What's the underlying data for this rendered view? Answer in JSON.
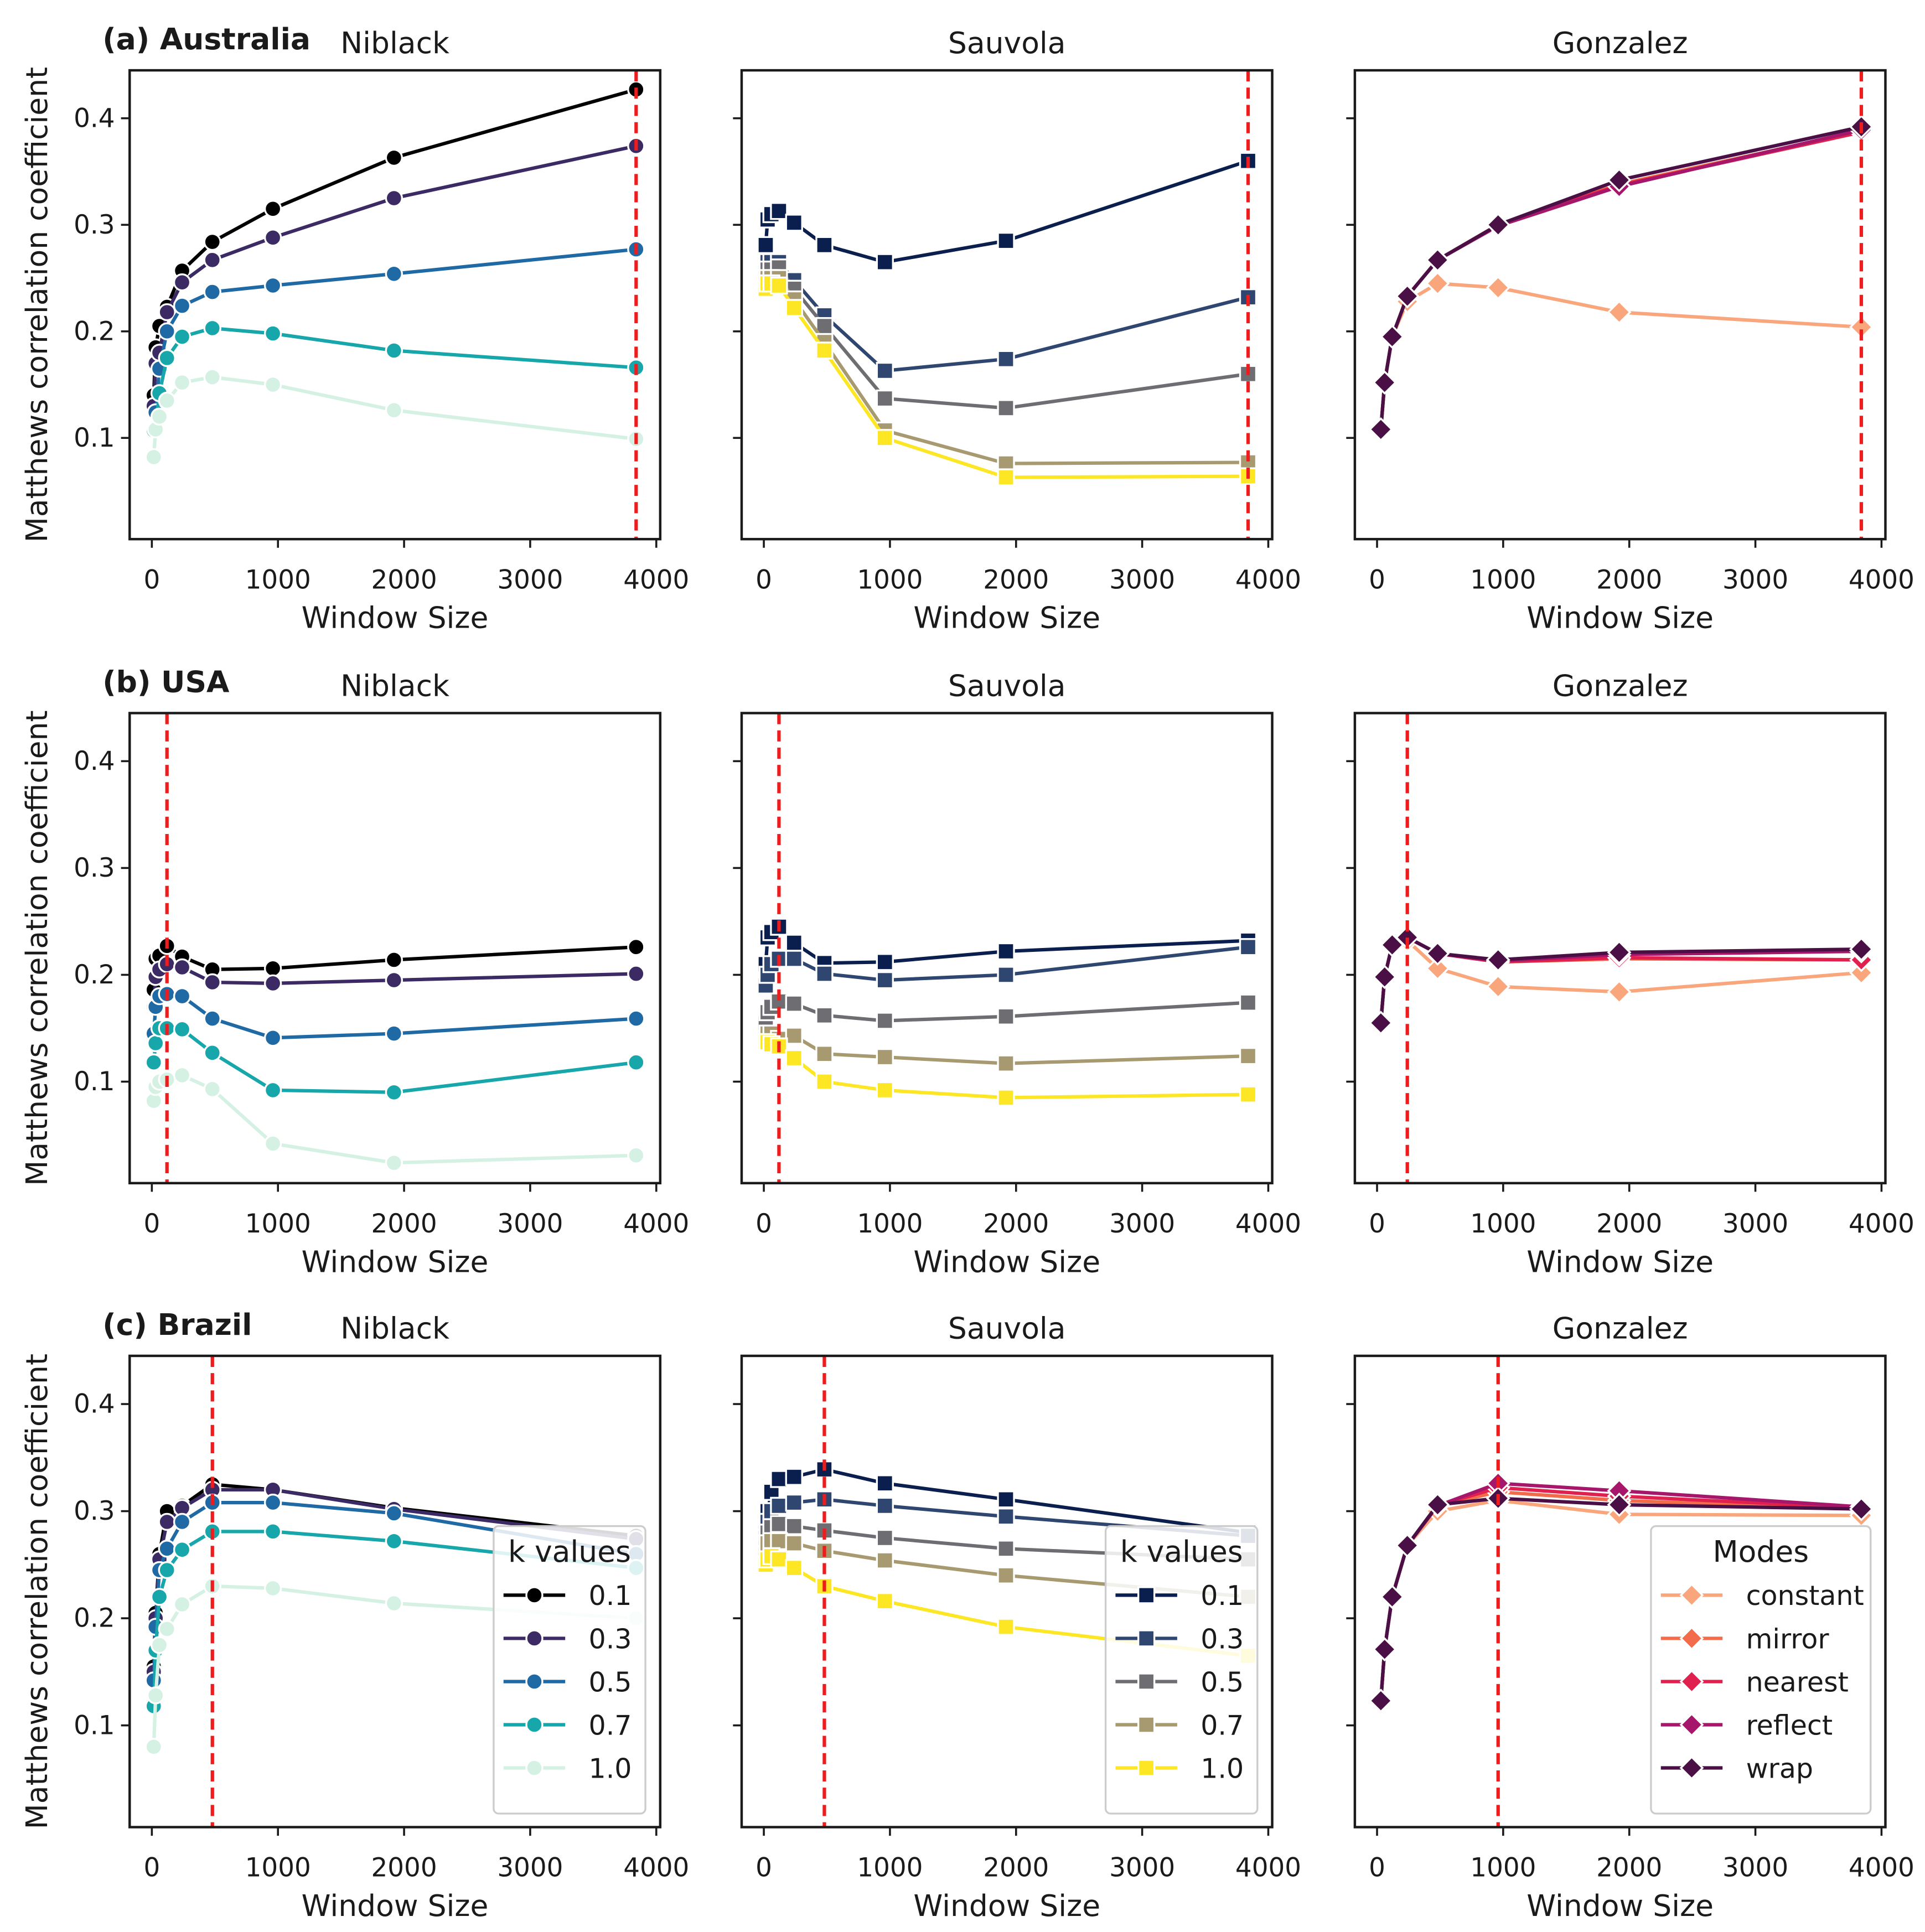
{
  "chart_data": [
    {
      "type": "line",
      "panel": "(a) Australia",
      "title": "Niblack",
      "xlabel": "Window Size",
      "ylabel": "Matthews correlation coefficient",
      "show_ytick_labels": true,
      "marker": "circle",
      "x": [
        15,
        30,
        60,
        120,
        240,
        480,
        960,
        1920,
        3840
      ],
      "vline": 3840,
      "xlim": [
        -176,
        4031
      ],
      "ylim": [
        0.005,
        0.445
      ],
      "xticks": [
        0,
        1000,
        2000,
        3000,
        4000
      ],
      "yticks": [
        0.1,
        0.2,
        0.3,
        0.4
      ],
      "series": [
        {
          "name": "0.1",
          "color": "#000000",
          "values": [
            0.14,
            0.185,
            0.205,
            0.223,
            0.257,
            0.284,
            0.315,
            0.363,
            0.427
          ]
        },
        {
          "name": "0.3",
          "color": "#3b2a63",
          "values": [
            0.13,
            0.17,
            0.18,
            0.218,
            0.246,
            0.267,
            0.288,
            0.325,
            0.374
          ]
        },
        {
          "name": "0.5",
          "color": "#1f69a4",
          "values": [
            0.11,
            0.124,
            0.165,
            0.2,
            0.224,
            0.237,
            0.243,
            0.254,
            0.277
          ]
        },
        {
          "name": "0.7",
          "color": "#17a7ab",
          "values": [
            0.107,
            0.11,
            0.142,
            0.175,
            0.195,
            0.203,
            0.198,
            0.182,
            0.166
          ]
        },
        {
          "name": "1.0",
          "color": "#d4f1e4",
          "values": [
            0.082,
            0.108,
            0.12,
            0.135,
            0.152,
            0.157,
            0.15,
            0.126,
            0.099
          ]
        }
      ]
    },
    {
      "type": "line",
      "title": "Sauvola",
      "xlabel": "Window Size",
      "show_ytick_labels": false,
      "marker": "square",
      "x": [
        15,
        30,
        60,
        120,
        240,
        480,
        960,
        1920,
        3840
      ],
      "vline": 3840,
      "xlim": [
        -176,
        4031
      ],
      "ylim": [
        0.005,
        0.445
      ],
      "xticks": [
        0,
        1000,
        2000,
        3000,
        4000
      ],
      "yticks": [
        0.1,
        0.2,
        0.3,
        0.4
      ],
      "series": [
        {
          "name": "0.1",
          "color": "#0b1f4e",
          "values": [
            0.281,
            0.305,
            0.31,
            0.313,
            0.302,
            0.281,
            0.265,
            0.285,
            0.36
          ]
        },
        {
          "name": "0.3",
          "color": "#2f4670",
          "values": [
            0.255,
            0.265,
            0.265,
            0.265,
            0.248,
            0.215,
            0.163,
            0.174,
            0.232
          ]
        },
        {
          "name": "0.5",
          "color": "#6e6e72",
          "values": [
            0.25,
            0.258,
            0.258,
            0.26,
            0.24,
            0.205,
            0.137,
            0.128,
            0.16
          ]
        },
        {
          "name": "0.7",
          "color": "#a89a70",
          "values": [
            0.245,
            0.25,
            0.25,
            0.25,
            0.23,
            0.19,
            0.107,
            0.076,
            0.077
          ]
        },
        {
          "name": "1.0",
          "color": "#fde725",
          "values": [
            0.24,
            0.245,
            0.245,
            0.243,
            0.222,
            0.182,
            0.1,
            0.063,
            0.064
          ]
        }
      ]
    },
    {
      "type": "line",
      "title": "Gonzalez",
      "xlabel": "Window Size",
      "show_ytick_labels": false,
      "marker": "diamond",
      "x": [
        30,
        60,
        120,
        240,
        480,
        960,
        1920,
        3840
      ],
      "vline": 3840,
      "xlim": [
        -176,
        4031
      ],
      "ylim": [
        0.005,
        0.445
      ],
      "xticks": [
        0,
        1000,
        2000,
        3000,
        4000
      ],
      "yticks": [
        0.1,
        0.2,
        0.3,
        0.4
      ],
      "series": [
        {
          "name": "constant",
          "color": "#f9a67c",
          "values": [
            0.108,
            0.152,
            0.195,
            0.228,
            0.245,
            0.241,
            0.218,
            0.204
          ]
        },
        {
          "name": "mirror",
          "color": "#f26b4a",
          "values": [
            0.108,
            0.152,
            0.195,
            0.233,
            0.267,
            0.3,
            0.338,
            0.388
          ]
        },
        {
          "name": "nearest",
          "color": "#e0204f",
          "values": [
            0.108,
            0.152,
            0.195,
            0.233,
            0.267,
            0.3,
            0.337,
            0.387
          ]
        },
        {
          "name": "reflect",
          "color": "#a6176b",
          "values": [
            0.108,
            0.152,
            0.195,
            0.233,
            0.267,
            0.299,
            0.336,
            0.389
          ]
        },
        {
          "name": "wrap",
          "color": "#4a1046",
          "values": [
            0.108,
            0.152,
            0.195,
            0.233,
            0.267,
            0.3,
            0.342,
            0.392
          ]
        }
      ]
    },
    {
      "type": "line",
      "panel": "(b) USA",
      "title": "Niblack",
      "xlabel": "Window Size",
      "ylabel": "Matthews correlation coefficient",
      "show_ytick_labels": true,
      "marker": "circle",
      "x": [
        15,
        30,
        60,
        120,
        240,
        480,
        960,
        1920,
        3840
      ],
      "vline": 120,
      "xlim": [
        -176,
        4031
      ],
      "ylim": [
        0.005,
        0.445
      ],
      "xticks": [
        0,
        1000,
        2000,
        3000,
        4000
      ],
      "yticks": [
        0.1,
        0.2,
        0.3,
        0.4
      ],
      "series": [
        {
          "name": "0.1",
          "color": "#000000",
          "values": [
            0.186,
            0.215,
            0.218,
            0.227,
            0.217,
            0.205,
            0.206,
            0.214,
            0.226
          ]
        },
        {
          "name": "0.3",
          "color": "#3b2a63",
          "values": [
            0.17,
            0.198,
            0.205,
            0.21,
            0.207,
            0.193,
            0.192,
            0.195,
            0.201
          ]
        },
        {
          "name": "0.5",
          "color": "#1f69a4",
          "values": [
            0.145,
            0.17,
            0.18,
            0.182,
            0.18,
            0.159,
            0.141,
            0.145,
            0.159
          ]
        },
        {
          "name": "0.7",
          "color": "#17a7ab",
          "values": [
            0.118,
            0.136,
            0.15,
            0.15,
            0.149,
            0.127,
            0.092,
            0.09,
            0.118
          ]
        },
        {
          "name": "1.0",
          "color": "#d4f1e4",
          "values": [
            0.082,
            0.095,
            0.1,
            0.102,
            0.106,
            0.093,
            0.042,
            0.024,
            0.031
          ]
        }
      ]
    },
    {
      "type": "line",
      "title": "Sauvola",
      "xlabel": "Window Size",
      "show_ytick_labels": false,
      "marker": "square",
      "x": [
        15,
        30,
        60,
        120,
        240,
        480,
        960,
        1920,
        3840
      ],
      "vline": 120,
      "xlim": [
        -176,
        4031
      ],
      "ylim": [
        0.005,
        0.445
      ],
      "xticks": [
        0,
        1000,
        2000,
        3000,
        4000
      ],
      "yticks": [
        0.1,
        0.2,
        0.3,
        0.4
      ],
      "series": [
        {
          "name": "0.1",
          "color": "#0b1f4e",
          "values": [
            0.21,
            0.235,
            0.24,
            0.245,
            0.23,
            0.211,
            0.212,
            0.222,
            0.232
          ]
        },
        {
          "name": "0.3",
          "color": "#2f4670",
          "values": [
            0.19,
            0.2,
            0.21,
            0.215,
            0.215,
            0.201,
            0.195,
            0.2,
            0.226
          ]
        },
        {
          "name": "0.5",
          "color": "#6e6e72",
          "values": [
            0.155,
            0.165,
            0.17,
            0.175,
            0.173,
            0.162,
            0.157,
            0.161,
            0.174
          ]
        },
        {
          "name": "0.7",
          "color": "#a89a70",
          "values": [
            0.14,
            0.145,
            0.145,
            0.14,
            0.143,
            0.126,
            0.123,
            0.117,
            0.124
          ]
        },
        {
          "name": "1.0",
          "color": "#fde725",
          "values": [
            0.137,
            0.137,
            0.135,
            0.133,
            0.122,
            0.1,
            0.092,
            0.085,
            0.088
          ]
        }
      ]
    },
    {
      "type": "line",
      "title": "Gonzalez",
      "xlabel": "Window Size",
      "show_ytick_labels": false,
      "marker": "diamond",
      "x": [
        30,
        60,
        120,
        240,
        480,
        960,
        1920,
        3840
      ],
      "vline": 240,
      "xlim": [
        -176,
        4031
      ],
      "ylim": [
        0.005,
        0.445
      ],
      "xticks": [
        0,
        1000,
        2000,
        3000,
        4000
      ],
      "yticks": [
        0.1,
        0.2,
        0.3,
        0.4
      ],
      "series": [
        {
          "name": "constant",
          "color": "#f9a67c",
          "values": [
            0.155,
            0.198,
            0.228,
            0.232,
            0.206,
            0.189,
            0.184,
            0.202
          ]
        },
        {
          "name": "mirror",
          "color": "#f26b4a",
          "values": [
            0.155,
            0.198,
            0.228,
            0.235,
            0.22,
            0.212,
            0.215,
            0.214
          ]
        },
        {
          "name": "nearest",
          "color": "#e0204f",
          "values": [
            0.155,
            0.198,
            0.228,
            0.235,
            0.22,
            0.212,
            0.216,
            0.214
          ]
        },
        {
          "name": "reflect",
          "color": "#a6176b",
          "values": [
            0.155,
            0.198,
            0.228,
            0.235,
            0.22,
            0.213,
            0.219,
            0.222
          ]
        },
        {
          "name": "wrap",
          "color": "#4a1046",
          "values": [
            0.155,
            0.198,
            0.228,
            0.235,
            0.22,
            0.214,
            0.221,
            0.224
          ]
        }
      ]
    },
    {
      "type": "line",
      "panel": "(c) Brazil",
      "title": "Niblack",
      "xlabel": "Window Size",
      "ylabel": "Matthews correlation coefficient",
      "show_ytick_labels": true,
      "marker": "circle",
      "x": [
        15,
        30,
        60,
        120,
        240,
        480,
        960,
        1920,
        3840
      ],
      "vline": 480,
      "legend": "lower right",
      "legend_title": "k values",
      "xlim": [
        -176,
        4031
      ],
      "ylim": [
        0.005,
        0.445
      ],
      "xticks": [
        0,
        1000,
        2000,
        3000,
        4000
      ],
      "yticks": [
        0.1,
        0.2,
        0.3,
        0.4
      ],
      "series": [
        {
          "name": "0.1",
          "color": "#000000",
          "values": [
            0.155,
            0.205,
            0.26,
            0.3,
            0.305,
            0.325,
            0.32,
            0.303,
            0.277
          ]
        },
        {
          "name": "0.3",
          "color": "#3b2a63",
          "values": [
            0.15,
            0.2,
            0.255,
            0.29,
            0.303,
            0.32,
            0.32,
            0.302,
            0.274
          ]
        },
        {
          "name": "0.5",
          "color": "#1f69a4",
          "values": [
            0.142,
            0.192,
            0.245,
            0.265,
            0.29,
            0.308,
            0.308,
            0.298,
            0.26
          ]
        },
        {
          "name": "0.7",
          "color": "#17a7ab",
          "values": [
            0.118,
            0.17,
            0.22,
            0.245,
            0.264,
            0.281,
            0.281,
            0.272,
            0.247
          ]
        },
        {
          "name": "1.0",
          "color": "#d4f1e4",
          "values": [
            0.08,
            0.128,
            0.175,
            0.19,
            0.213,
            0.23,
            0.228,
            0.214,
            0.2
          ]
        }
      ]
    },
    {
      "type": "line",
      "title": "Sauvola",
      "xlabel": "Window Size",
      "show_ytick_labels": false,
      "marker": "square",
      "x": [
        15,
        30,
        60,
        120,
        240,
        480,
        960,
        1920,
        3840
      ],
      "vline": 480,
      "legend": "lower right",
      "legend_title": "k values",
      "xlim": [
        -176,
        4031
      ],
      "ylim": [
        0.005,
        0.445
      ],
      "xticks": [
        0,
        1000,
        2000,
        3000,
        4000
      ],
      "yticks": [
        0.1,
        0.2,
        0.3,
        0.4
      ],
      "series": [
        {
          "name": "0.1",
          "color": "#0b1f4e",
          "values": [
            0.28,
            0.3,
            0.318,
            0.33,
            0.332,
            0.339,
            0.326,
            0.311,
            0.28
          ]
        },
        {
          "name": "0.3",
          "color": "#2f4670",
          "values": [
            0.275,
            0.29,
            0.3,
            0.305,
            0.308,
            0.311,
            0.305,
            0.295,
            0.277
          ]
        },
        {
          "name": "0.5",
          "color": "#6e6e72",
          "values": [
            0.27,
            0.28,
            0.285,
            0.288,
            0.286,
            0.282,
            0.275,
            0.265,
            0.255
          ]
        },
        {
          "name": "0.7",
          "color": "#a89a70",
          "values": [
            0.26,
            0.27,
            0.272,
            0.272,
            0.27,
            0.263,
            0.254,
            0.24,
            0.22
          ]
        },
        {
          "name": "1.0",
          "color": "#fde725",
          "values": [
            0.25,
            0.255,
            0.258,
            0.255,
            0.247,
            0.23,
            0.216,
            0.192,
            0.165
          ]
        }
      ]
    },
    {
      "type": "line",
      "title": "Gonzalez",
      "xlabel": "Window Size",
      "show_ytick_labels": false,
      "marker": "diamond",
      "x": [
        30,
        60,
        120,
        240,
        480,
        960,
        1920,
        3840
      ],
      "vline": 960,
      "legend": "lower right",
      "legend_title": "Modes",
      "xlim": [
        -176,
        4031
      ],
      "ylim": [
        0.005,
        0.445
      ],
      "xticks": [
        0,
        1000,
        2000,
        3000,
        4000
      ],
      "yticks": [
        0.1,
        0.2,
        0.3,
        0.4
      ],
      "series": [
        {
          "name": "constant",
          "color": "#f9a67c",
          "values": [
            0.123,
            0.171,
            0.22,
            0.268,
            0.3,
            0.31,
            0.297,
            0.296
          ]
        },
        {
          "name": "mirror",
          "color": "#f26b4a",
          "values": [
            0.123,
            0.171,
            0.22,
            0.268,
            0.305,
            0.318,
            0.31,
            0.302
          ]
        },
        {
          "name": "nearest",
          "color": "#e0204f",
          "values": [
            0.123,
            0.171,
            0.22,
            0.268,
            0.305,
            0.322,
            0.314,
            0.303
          ]
        },
        {
          "name": "reflect",
          "color": "#a6176b",
          "values": [
            0.123,
            0.171,
            0.22,
            0.268,
            0.305,
            0.326,
            0.319,
            0.304
          ]
        },
        {
          "name": "wrap",
          "color": "#4a1046",
          "values": [
            0.123,
            0.171,
            0.22,
            0.268,
            0.306,
            0.312,
            0.306,
            0.302
          ]
        }
      ]
    }
  ]
}
